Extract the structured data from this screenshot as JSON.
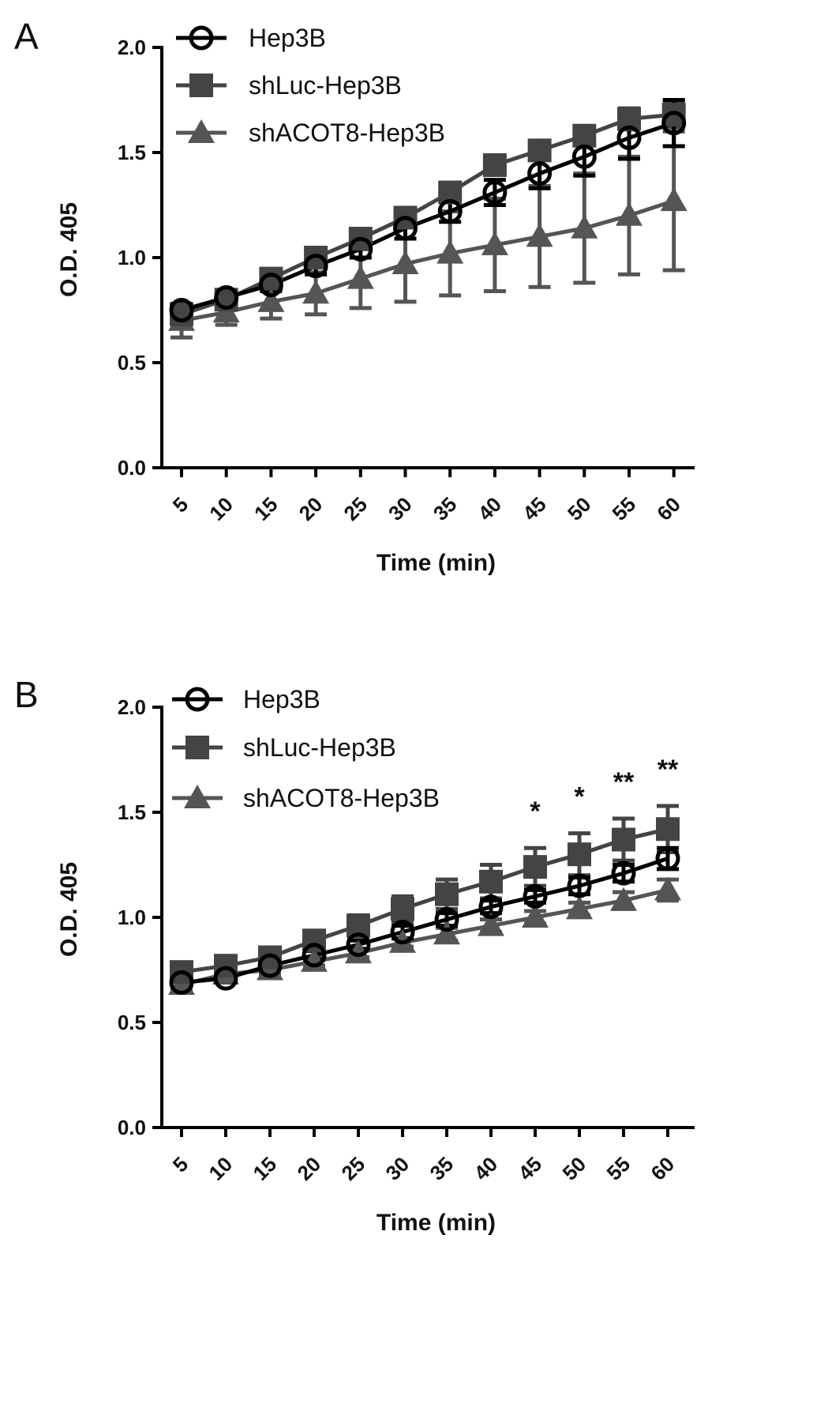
{
  "chart_data": [
    {
      "panel": "A",
      "type": "line",
      "xlabel": "Time (min)",
      "ylabel": "O.D. 405",
      "ylim": [
        0,
        2.0
      ],
      "yticks": [
        "0.0",
        "0.5",
        "1.0",
        "1.5",
        "2.0"
      ],
      "categories": [
        "5",
        "10",
        "15",
        "20",
        "25",
        "30",
        "35",
        "40",
        "45",
        "50",
        "55",
        "60"
      ],
      "legend_position": "top-left",
      "series": [
        {
          "name": "Hep3B",
          "marker": "open-circle",
          "color": "#000000",
          "values": [
            0.75,
            0.81,
            0.87,
            0.96,
            1.04,
            1.14,
            1.22,
            1.31,
            1.4,
            1.48,
            1.57,
            1.64
          ],
          "errors": [
            0.03,
            0.03,
            0.03,
            0.04,
            0.04,
            0.05,
            0.05,
            0.06,
            0.07,
            0.09,
            0.1,
            0.11
          ]
        },
        {
          "name": "shLuc-Hep3B",
          "marker": "filled-square",
          "color": "#444444",
          "values": [
            0.73,
            0.8,
            0.9,
            1.0,
            1.09,
            1.19,
            1.31,
            1.44,
            1.51,
            1.58,
            1.66,
            1.68
          ],
          "errors": [
            0.03,
            0.03,
            0.03,
            0.03,
            0.03,
            0.03,
            0.04,
            0.04,
            0.04,
            0.04,
            0.05,
            0.06
          ]
        },
        {
          "name": "shACOT8-Hep3B",
          "marker": "filled-triangle",
          "color": "#555555",
          "values": [
            0.7,
            0.74,
            0.79,
            0.83,
            0.9,
            0.97,
            1.02,
            1.06,
            1.1,
            1.14,
            1.2,
            1.27
          ],
          "errors": [
            0.08,
            0.06,
            0.08,
            0.1,
            0.14,
            0.18,
            0.2,
            0.22,
            0.24,
            0.26,
            0.28,
            0.33
          ]
        }
      ]
    },
    {
      "panel": "B",
      "type": "line",
      "xlabel": "Time (min)",
      "ylabel": "O.D. 405",
      "ylim": [
        0,
        2.0
      ],
      "yticks": [
        "0.0",
        "0.5",
        "1.0",
        "1.5",
        "2.0"
      ],
      "categories": [
        "5",
        "10",
        "15",
        "20",
        "25",
        "30",
        "35",
        "40",
        "45",
        "50",
        "55",
        "60"
      ],
      "legend_position": "top-left",
      "annotations": [
        {
          "x": "45",
          "label": "*"
        },
        {
          "x": "50",
          "label": "*"
        },
        {
          "x": "55",
          "label": "**"
        },
        {
          "x": "60",
          "label": "**"
        }
      ],
      "series": [
        {
          "name": "Hep3B",
          "marker": "open-circle",
          "color": "#000000",
          "values": [
            0.69,
            0.71,
            0.77,
            0.82,
            0.87,
            0.93,
            0.99,
            1.05,
            1.1,
            1.15,
            1.21,
            1.28
          ],
          "errors": [
            0.02,
            0.02,
            0.02,
            0.02,
            0.02,
            0.03,
            0.03,
            0.03,
            0.03,
            0.04,
            0.04,
            0.05
          ]
        },
        {
          "name": "shLuc-Hep3B",
          "marker": "filled-square",
          "color": "#444444",
          "values": [
            0.74,
            0.77,
            0.81,
            0.89,
            0.96,
            1.04,
            1.11,
            1.17,
            1.24,
            1.3,
            1.37,
            1.42
          ],
          "errors": [
            0.02,
            0.03,
            0.03,
            0.04,
            0.05,
            0.06,
            0.07,
            0.08,
            0.09,
            0.1,
            0.1,
            0.11
          ]
        },
        {
          "name": "shACOT8-Hep3B",
          "marker": "filled-triangle",
          "color": "#555555",
          "values": [
            0.68,
            0.73,
            0.75,
            0.79,
            0.83,
            0.88,
            0.92,
            0.96,
            1.0,
            1.04,
            1.08,
            1.13
          ],
          "errors": [
            0.02,
            0.02,
            0.02,
            0.02,
            0.02,
            0.02,
            0.03,
            0.03,
            0.03,
            0.03,
            0.04,
            0.05
          ]
        }
      ]
    }
  ]
}
